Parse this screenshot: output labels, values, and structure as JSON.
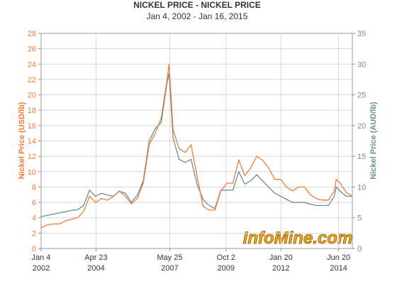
{
  "chart_data": {
    "type": "line",
    "title": "NICKEL PRICE - NICKEL PRICE",
    "subtitle": "Jan 4, 2002 - Jan 16, 2015",
    "y_label": "Nickel Price (USD/lb)",
    "y2_label": "Nickel Price (AUD/lb)",
    "watermark": "InfoMine.com",
    "x": [
      "2002-01-04",
      "2002-04-15",
      "2002-07-15",
      "2002-10-15",
      "2003-01-15",
      "2003-04-15",
      "2003-07-15",
      "2003-10-15",
      "2004-01-15",
      "2004-04-15",
      "2004-07-15",
      "2004-10-15",
      "2005-01-15",
      "2005-04-15",
      "2005-07-15",
      "2005-10-15",
      "2006-01-15",
      "2006-04-15",
      "2006-07-15",
      "2006-10-15",
      "2007-01-15",
      "2007-04-15",
      "2007-05-15",
      "2007-07-15",
      "2007-10-15",
      "2008-01-15",
      "2008-04-15",
      "2008-07-15",
      "2008-10-15",
      "2009-01-15",
      "2009-04-15",
      "2009-07-15",
      "2009-10-15",
      "2010-01-15",
      "2010-04-15",
      "2010-07-15",
      "2010-10-15",
      "2011-01-15",
      "2011-04-15",
      "2011-07-15",
      "2011-10-15",
      "2012-01-15",
      "2012-04-15",
      "2012-07-15",
      "2012-10-15",
      "2013-01-15",
      "2013-04-15",
      "2013-07-15",
      "2013-10-15",
      "2014-01-15",
      "2014-04-15",
      "2014-05-15",
      "2014-07-15",
      "2014-10-15",
      "2015-01-16"
    ],
    "series": [
      {
        "name": "Nickel Price (USD/lb)",
        "color": "#f07b3a",
        "values": [
          2.7,
          3.1,
          3.2,
          3.2,
          3.6,
          3.8,
          4.0,
          4.8,
          6.8,
          6.0,
          6.5,
          6.3,
          6.8,
          7.5,
          6.8,
          5.8,
          6.5,
          8.5,
          13.5,
          15.0,
          17.0,
          22.0,
          24.0,
          15.5,
          13.0,
          12.5,
          13.5,
          9.5,
          5.5,
          5.0,
          5.0,
          7.5,
          8.5,
          8.5,
          11.5,
          9.5,
          10.5,
          12.0,
          11.5,
          10.5,
          9.0,
          9.0,
          8.0,
          7.5,
          8.0,
          8.0,
          7.0,
          6.5,
          6.3,
          6.3,
          7.5,
          9.0,
          8.5,
          7.3,
          6.8
        ]
      },
      {
        "name": "Nickel Price (AUD/lb)",
        "color": "#6e8f8e",
        "axis": "y2",
        "values": [
          5.2,
          5.4,
          5.6,
          5.8,
          6.0,
          6.2,
          6.3,
          7.0,
          9.5,
          8.5,
          9.0,
          8.7,
          8.5,
          9.3,
          9.0,
          7.5,
          8.7,
          11.0,
          17.5,
          19.5,
          20.5,
          27.0,
          28.5,
          18.0,
          14.5,
          14.0,
          14.5,
          10.5,
          8.0,
          7.0,
          6.5,
          9.5,
          9.5,
          9.5,
          12.5,
          10.5,
          11.0,
          12.0,
          11.0,
          10.0,
          9.0,
          8.5,
          8.0,
          7.5,
          7.5,
          7.5,
          7.2,
          7.0,
          7.0,
          7.0,
          8.5,
          10.0,
          9.3,
          8.5,
          8.5
        ]
      }
    ],
    "xlim": [
      "2002-01-04",
      "2015-01-16"
    ],
    "xticks": [
      {
        "value": "2002-01-04",
        "label": "Jan 4 2002"
      },
      {
        "value": "2004-04-23",
        "label": "Apr 23 2004"
      },
      {
        "value": "2007-05-25",
        "label": "May 25 2007"
      },
      {
        "value": "2009-10-02",
        "label": "Oct 2 2009"
      },
      {
        "value": "2012-01-20",
        "label": "Jan 20 2012"
      },
      {
        "value": "2014-06-20",
        "label": "Jun 20 2014"
      }
    ],
    "ylim": [
      0,
      28
    ],
    "yticks": [
      0,
      2,
      4,
      6,
      8,
      10,
      12,
      14,
      16,
      18,
      20,
      22,
      24,
      26,
      28
    ],
    "y2lim": [
      0,
      35
    ],
    "y2ticks": [
      0,
      5,
      10,
      15,
      20,
      25,
      30,
      35
    ],
    "grid": true
  }
}
